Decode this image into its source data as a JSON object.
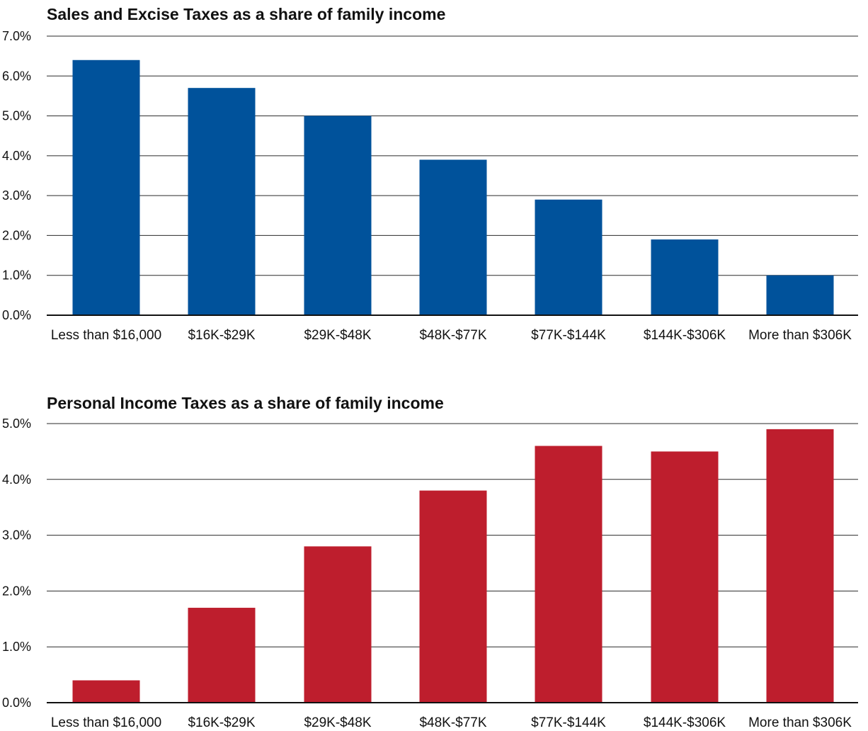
{
  "chart_data": [
    {
      "type": "bar",
      "title": "Sales and Excise Taxes as a share of family income",
      "xlabel": "",
      "ylabel": "",
      "categories": [
        "Less than $16,000",
        "$16K-$29K",
        "$29K-$48K",
        "$48K-$77K",
        "$77K-$144K",
        "$144K-$306K",
        "More than $306K"
      ],
      "values": [
        6.4,
        5.7,
        5.0,
        3.9,
        2.9,
        1.9,
        1.0
      ],
      "unit": "%",
      "ylim": [
        0,
        7
      ],
      "yticks": [
        "0.0%",
        "1.0%",
        "2.0%",
        "3.0%",
        "4.0%",
        "5.0%",
        "6.0%",
        "7.0%"
      ],
      "grid": true,
      "color": "#00529b"
    },
    {
      "type": "bar",
      "title": "Personal Income Taxes as a share of family income",
      "xlabel": "",
      "ylabel": "",
      "categories": [
        "Less than $16,000",
        "$16K-$29K",
        "$29K-$48K",
        "$48K-$77K",
        "$77K-$144K",
        "$144K-$306K",
        "More than $306K"
      ],
      "values": [
        0.4,
        1.7,
        2.8,
        3.8,
        4.6,
        4.5,
        4.9
      ],
      "unit": "%",
      "ylim": [
        0,
        5
      ],
      "yticks": [
        "0.0%",
        "1.0%",
        "2.0%",
        "3.0%",
        "4.0%",
        "5.0%"
      ],
      "grid": true,
      "color": "#be1e2d"
    }
  ]
}
